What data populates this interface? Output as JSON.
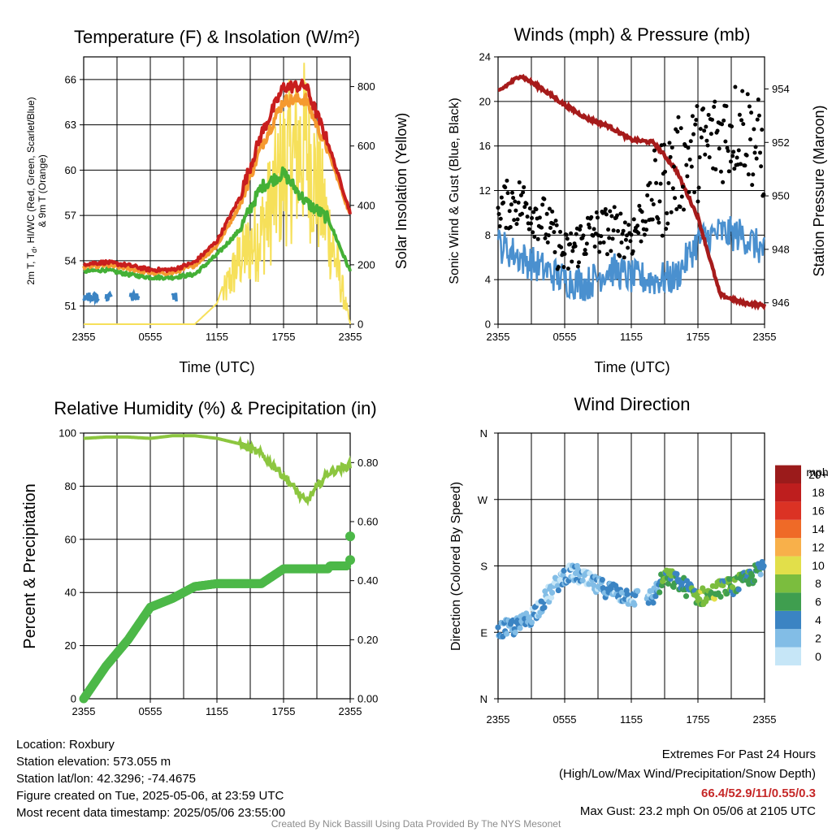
{
  "colors": {
    "temp_red": "#c81e1e",
    "dewpoint_green": "#44b036",
    "heat_index_scarlet": "#e2411b",
    "wind_chill_blue": "#3b84c3",
    "temp_9m_orange": "#f59a30",
    "insolation_yellow": "#f6e05a",
    "wind_blue": "#4a90cf",
    "gust_black": "#000000",
    "pressure_maroon": "#a61b1b",
    "rh_lightgreen": "#8cc63f",
    "precip_green": "#4cb848",
    "grid": "#000000"
  },
  "time_ticks": [
    "2355",
    "0555",
    "1155",
    "1755",
    "2355"
  ],
  "panels": {
    "temperature": {
      "title": "Temperature (F) & Insolation (W/m²)",
      "ylabel_left": "2m T, Td, HI/WC (Red, Green, Scarlet/Blue) & 9m T (Orange)",
      "ylabel_left_line1": "2m T, T",
      "ylabel_left_sub": "d",
      "ylabel_left_line1b": ", HI/WC (Red, Green, Scarlet/Blue)",
      "ylabel_left_line2": "& 9m T (Orange)",
      "ylabel_right": "Solar Insolation (Yellow)",
      "xlabel": "Time (UTC)",
      "left_ticks": [
        "51",
        "54",
        "57",
        "60",
        "63",
        "66"
      ],
      "right_ticks": [
        "0",
        "200",
        "400",
        "600",
        "800"
      ]
    },
    "winds": {
      "title": "Winds (mph) & Pressure (mb)",
      "ylabel_left": "Sonic Wind & Gust (Blue, Black)",
      "ylabel_right": "Station Pressure (Maroon)",
      "xlabel": "Time (UTC)",
      "left_ticks": [
        "0",
        "4",
        "8",
        "12",
        "16",
        "20",
        "24"
      ],
      "right_ticks": [
        "946",
        "948",
        "950",
        "952",
        "954"
      ]
    },
    "humidity": {
      "title": "Relative Humidity (%) & Precipitation (in)",
      "ylabel_left": "Percent & Precipitation",
      "left_ticks": [
        "0",
        "20",
        "40",
        "60",
        "80",
        "100"
      ],
      "right_ticks": [
        "0.00",
        "0.20",
        "0.40",
        "0.60",
        "0.80"
      ]
    },
    "wind_direction": {
      "title": "Wind Direction",
      "ylabel_left": "Direction (Colored By Speed)",
      "dir_ticks": [
        "N",
        "E",
        "S",
        "W",
        "N"
      ],
      "legend_title": "mph",
      "legend_labels": [
        "0",
        "2",
        "4",
        "6",
        "8",
        "10",
        "12",
        "14",
        "16",
        "18",
        "20+"
      ],
      "legend_colors": [
        "#c6e6f7",
        "#82bde6",
        "#3b84c3",
        "#3f9e4f",
        "#7bbd3e",
        "#e2df4a",
        "#f8b04a",
        "#ef6a27",
        "#db3224",
        "#be1e1e",
        "#9b1b1b"
      ]
    }
  },
  "chart_data": [
    {
      "type": "line",
      "title": "Temperature (F) & Insolation (W/m²)",
      "xlabel": "Time (UTC)",
      "ylabel": "2m T, Td, HI/WC (Red, Green, Scarlet/Blue) & 9m T (Orange)",
      "y2label": "Solar Insolation (Yellow)",
      "x_tick_labels": [
        "2355",
        "0555",
        "1155",
        "1755",
        "2355"
      ],
      "x_hours": [
        0,
        2,
        4,
        6,
        8,
        10,
        12,
        14,
        16,
        18,
        20,
        22,
        24
      ],
      "ylim": [
        49.8,
        67.5
      ],
      "y2lim": [
        0,
        900
      ],
      "series": [
        {
          "name": "2m T",
          "color": "#c81e1e",
          "values": [
            53.8,
            53.9,
            53.7,
            53.4,
            53.4,
            53.9,
            55.3,
            58.1,
            62.4,
            65.5,
            65.6,
            61.8,
            57.2
          ]
        },
        {
          "name": "9m T",
          "color": "#f59a30",
          "values": [
            53.6,
            53.7,
            53.5,
            53.2,
            53.2,
            53.7,
            55.0,
            57.6,
            61.6,
            64.6,
            64.7,
            61.3,
            57.0
          ]
        },
        {
          "name": "Td",
          "color": "#44b036",
          "values": [
            53.3,
            53.4,
            53.1,
            52.9,
            52.9,
            53.1,
            54.4,
            56.0,
            58.9,
            59.8,
            57.9,
            56.8,
            53.3
          ]
        },
        {
          "name": "Solar Insolation",
          "color": "#f6e05a",
          "values": [
            0,
            0,
            0,
            0,
            0,
            0,
            70,
            300,
            420,
            720,
            840,
            450,
            0
          ]
        }
      ]
    },
    {
      "type": "line",
      "title": "Winds (mph) & Pressure (mb)",
      "xlabel": "Time (UTC)",
      "ylabel": "Sonic Wind & Gust (Blue, Black)",
      "y2label": "Station Pressure (Maroon)",
      "x_tick_labels": [
        "2355",
        "0555",
        "1155",
        "1755",
        "2355"
      ],
      "x_hours": [
        0,
        2,
        4,
        6,
        8,
        10,
        12,
        14,
        16,
        18,
        20,
        22,
        24
      ],
      "ylim": [
        0,
        24
      ],
      "y2lim": [
        945.2,
        955.2
      ],
      "series": [
        {
          "name": "Sonic Wind",
          "color": "#4a90cf",
          "values": [
            7.2,
            6.0,
            5.0,
            4.0,
            3.6,
            5.0,
            4.2,
            4.0,
            4.2,
            7.5,
            8.2,
            8.0,
            6.5
          ]
        },
        {
          "name": "Gust",
          "color": "#000000",
          "values": [
            10.5,
            11.0,
            9.5,
            6.0,
            8.0,
            8.5,
            8.0,
            11.0,
            14.0,
            15.5,
            17.0,
            18.0,
            15.0
          ]
        },
        {
          "name": "Station Pressure",
          "color": "#a61b1b",
          "values": [
            953.9,
            954.5,
            954.0,
            953.4,
            952.9,
            952.6,
            952.1,
            952.0,
            951.0,
            949.2,
            946.3,
            946.0,
            945.9
          ]
        }
      ]
    },
    {
      "type": "line",
      "title": "Relative Humidity (%) & Precipitation (in)",
      "ylabel": "Percent & Precipitation",
      "x_tick_labels": [
        "2355",
        "0555",
        "1155",
        "1755",
        "2355"
      ],
      "x_hours": [
        0,
        2,
        4,
        6,
        8,
        10,
        12,
        14,
        16,
        18,
        20,
        22,
        24
      ],
      "ylim": [
        0,
        100
      ],
      "y2lim": [
        0,
        0.9
      ],
      "series": [
        {
          "name": "Relative Humidity",
          "color": "#8cc63f",
          "values": [
            98,
            98.5,
            98.5,
            98,
            99,
            99,
            98,
            96,
            92,
            84,
            74,
            85,
            88
          ]
        },
        {
          "name": "Precipitation",
          "color": "#4cb848",
          "values": [
            0,
            0.11,
            0.2,
            0.31,
            0.34,
            0.38,
            0.39,
            0.39,
            0.39,
            0.44,
            0.44,
            0.44,
            0.55
          ]
        }
      ]
    },
    {
      "type": "scatter",
      "title": "Wind Direction",
      "ylabel": "Direction (Colored By Speed)",
      "x_tick_labels": [
        "2355",
        "0555",
        "1155",
        "1755",
        "2355"
      ],
      "y_tick_labels": [
        "N",
        "E",
        "S",
        "W",
        "N"
      ],
      "ylim": [
        0,
        360
      ],
      "colorbar_label": "mph",
      "x_hours": [
        0,
        1,
        2,
        3,
        4,
        5,
        6,
        7,
        8,
        9,
        10,
        11,
        12,
        13,
        14,
        15,
        16,
        17,
        18,
        19,
        20,
        21,
        22,
        23,
        24
      ],
      "direction_deg": [
        92,
        96,
        100,
        112,
        130,
        150,
        168,
        170,
        160,
        152,
        148,
        142,
        138,
        135,
        140,
        165,
        160,
        150,
        138,
        140,
        150,
        152,
        158,
        168,
        178
      ],
      "speed_mph": [
        4,
        4,
        4,
        3,
        3,
        2,
        3,
        3,
        3,
        3,
        3,
        3,
        3,
        3,
        3,
        8,
        6,
        6,
        8,
        9,
        8,
        7,
        7,
        6,
        5
      ]
    }
  ],
  "footer": {
    "location": "Location: Roxbury",
    "elevation": "Station elevation: 573.055 m",
    "latlon": "Station lat/lon: 42.3296; -74.4675",
    "created": "Figure created on Tue, 2025-05-06, at 23:59 UTC",
    "recent": "Most recent data timestamp: 2025/05/06 23:55:00",
    "extremes_title": "Extremes For Past 24 Hours",
    "extremes_subtitle": "(High/Low/Max Wind/Precipitation/Snow Depth)",
    "extremes_values": "66.4/52.9/11/0.55/0.3",
    "max_gust": "Max Gust: 23.2 mph On 05/06 at 2105 UTC",
    "credit": "Created By Nick Bassill Using Data Provided By The NYS Mesonet"
  }
}
